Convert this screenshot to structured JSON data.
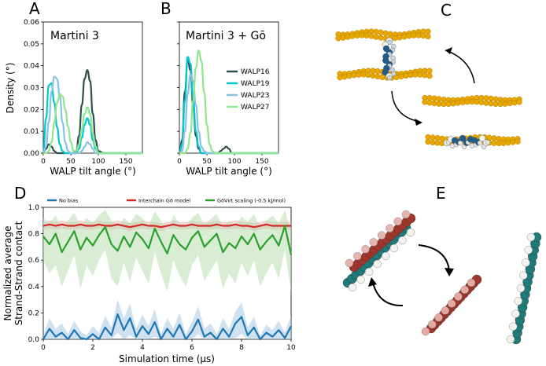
{
  "panels": {
    "A": "A",
    "B": "B",
    "C": "C",
    "D": "D",
    "E": "E"
  },
  "chart_data": [
    {
      "type": "line",
      "panel": "A",
      "title": "Martini 3",
      "xlabel": "WALP tilt angle (°)",
      "ylabel": "Density (°)",
      "xlim": [
        0,
        180
      ],
      "ylim": [
        0,
        0.06
      ],
      "xticks": [
        "0",
        "50",
        "100",
        "150"
      ],
      "yticks": [
        "0.00",
        "0.01",
        "0.02",
        "0.03",
        "0.04",
        "0.05",
        "0.06"
      ],
      "x": [
        0,
        5,
        10,
        15,
        20,
        25,
        30,
        35,
        40,
        45,
        50,
        55,
        60,
        65,
        70,
        75,
        80,
        85,
        90,
        95,
        100,
        110,
        120
      ],
      "series": [
        {
          "name": "WALP16",
          "color": "#2f4f4f",
          "values": [
            0.0,
            0.002,
            0.004,
            0.003,
            0.001,
            0.0,
            0.0,
            0.0,
            0.0,
            0.0,
            0.0,
            0.0,
            0.001,
            0.008,
            0.022,
            0.034,
            0.038,
            0.033,
            0.018,
            0.006,
            0.001,
            0.0,
            0.0
          ]
        },
        {
          "name": "WALP19",
          "color": "#00c8d0",
          "values": [
            0.0,
            0.016,
            0.031,
            0.032,
            0.023,
            0.012,
            0.004,
            0.001,
            0.0,
            0.0,
            0.0,
            0.0,
            0.0,
            0.002,
            0.007,
            0.013,
            0.016,
            0.013,
            0.006,
            0.002,
            0.0,
            0.0,
            0.0
          ]
        },
        {
          "name": "WALP23",
          "color": "#87c3e0",
          "values": [
            0.0,
            0.003,
            0.014,
            0.028,
            0.035,
            0.034,
            0.026,
            0.014,
            0.005,
            0.001,
            0.0,
            0.0,
            0.0,
            0.0,
            0.001,
            0.003,
            0.005,
            0.004,
            0.002,
            0.0,
            0.0,
            0.0,
            0.0
          ]
        },
        {
          "name": "WALP27",
          "color": "#8ee68e",
          "values": [
            0.0,
            0.0,
            0.001,
            0.005,
            0.014,
            0.023,
            0.027,
            0.026,
            0.02,
            0.012,
            0.005,
            0.001,
            0.001,
            0.004,
            0.011,
            0.018,
            0.021,
            0.018,
            0.009,
            0.003,
            0.0,
            0.0,
            0.0
          ]
        }
      ]
    },
    {
      "type": "line",
      "panel": "B",
      "title": "Martini 3 + Gō",
      "xlabel": "WALP tilt angle (°)",
      "xlim": [
        0,
        180
      ],
      "ylim": [
        0,
        0.06
      ],
      "xticks": [
        "0",
        "50",
        "100",
        "150"
      ],
      "legend": "right",
      "x": [
        0,
        5,
        10,
        15,
        20,
        25,
        30,
        35,
        40,
        45,
        50,
        55,
        60,
        65,
        70,
        75,
        80,
        85,
        90,
        95,
        100,
        110,
        120
      ],
      "series": [
        {
          "name": "WALP16",
          "color": "#2f4f4f",
          "values": [
            0.0,
            0.006,
            0.028,
            0.043,
            0.038,
            0.022,
            0.008,
            0.002,
            0.0,
            0.0,
            0.0,
            0.0,
            0.0,
            0.0,
            0.0,
            0.001,
            0.002,
            0.003,
            0.002,
            0.0,
            0.0,
            0.0,
            0.0
          ]
        },
        {
          "name": "WALP19",
          "color": "#00c8d0",
          "values": [
            0.0,
            0.004,
            0.024,
            0.044,
            0.041,
            0.025,
            0.01,
            0.003,
            0.0,
            0.0,
            0.0,
            0.0,
            0.0,
            0.0,
            0.0,
            0.0,
            0.0,
            0.0,
            0.0,
            0.0,
            0.0,
            0.0,
            0.0
          ]
        },
        {
          "name": "WALP23",
          "color": "#87c3e0",
          "values": [
            0.0,
            0.001,
            0.01,
            0.027,
            0.036,
            0.033,
            0.022,
            0.01,
            0.003,
            0.001,
            0.0,
            0.0,
            0.0,
            0.0,
            0.0,
            0.0,
            0.0,
            0.0,
            0.0,
            0.0,
            0.0,
            0.0,
            0.0
          ]
        },
        {
          "name": "WALP27",
          "color": "#8ee68e",
          "values": [
            0.0,
            0.0,
            0.0,
            0.002,
            0.009,
            0.024,
            0.039,
            0.047,
            0.042,
            0.028,
            0.013,
            0.004,
            0.001,
            0.0,
            0.0,
            0.0,
            0.0,
            0.0,
            0.0,
            0.0,
            0.0,
            0.0,
            0.0
          ]
        }
      ]
    },
    {
      "type": "line",
      "panel": "D",
      "xlabel": "Simulation time (µs)",
      "ylabel": "Normalized average\nStrand-Strand contact",
      "ylabel_lines": [
        "Normalized average",
        "Strand-Strand contact"
      ],
      "xlim": [
        0,
        10
      ],
      "ylim": [
        0,
        1.0
      ],
      "xticks": [
        "0",
        "2",
        "4",
        "6",
        "8",
        "10"
      ],
      "yticks": [
        "0.0",
        "0.2",
        "0.4",
        "0.6",
        "0.8",
        "1.0"
      ],
      "legend": "top",
      "x": [
        0,
        0.25,
        0.5,
        0.75,
        1,
        1.25,
        1.5,
        1.75,
        2,
        2.25,
        2.5,
        2.75,
        3,
        3.25,
        3.5,
        3.75,
        4,
        4.25,
        4.5,
        4.75,
        5,
        5.25,
        5.5,
        5.75,
        6,
        6.25,
        6.5,
        6.75,
        7,
        7.25,
        7.5,
        7.75,
        8,
        8.25,
        8.5,
        8.75,
        9,
        9.25,
        9.5,
        9.75,
        10
      ],
      "series": [
        {
          "name": "No bias",
          "color": "#1f77b4",
          "values": [
            0.0,
            0.08,
            0.02,
            0.05,
            0.0,
            0.07,
            0.01,
            0.0,
            0.04,
            0.0,
            0.09,
            0.03,
            0.19,
            0.07,
            0.16,
            0.02,
            0.1,
            0.04,
            0.13,
            0.0,
            0.08,
            0.02,
            0.11,
            0.0,
            0.06,
            0.15,
            0.02,
            0.05,
            0.0,
            0.08,
            0.02,
            0.12,
            0.17,
            0.03,
            0.09,
            0.0,
            0.05,
            0.02,
            0.07,
            0.01,
            0.1
          ],
          "band_low": [
            0.0,
            0.0,
            0.0,
            0.0,
            0.0,
            0.0,
            0.0,
            0.0,
            0.0,
            0.0,
            0.0,
            0.0,
            0.05,
            0.0,
            0.03,
            0.0,
            0.0,
            0.0,
            0.02,
            0.0,
            0.0,
            0.0,
            0.0,
            0.0,
            0.0,
            0.04,
            0.0,
            0.0,
            0.0,
            0.0,
            0.0,
            0.01,
            0.04,
            0.0,
            0.0,
            0.0,
            0.0,
            0.0,
            0.0,
            0.0,
            0.0
          ],
          "band_high": [
            0.03,
            0.16,
            0.08,
            0.12,
            0.04,
            0.14,
            0.06,
            0.03,
            0.1,
            0.05,
            0.18,
            0.09,
            0.3,
            0.16,
            0.27,
            0.08,
            0.19,
            0.1,
            0.23,
            0.04,
            0.16,
            0.08,
            0.2,
            0.04,
            0.13,
            0.25,
            0.08,
            0.12,
            0.04,
            0.16,
            0.08,
            0.21,
            0.28,
            0.09,
            0.17,
            0.03,
            0.11,
            0.07,
            0.14,
            0.05,
            0.18
          ]
        },
        {
          "name": "Interchain Gō model",
          "color": "#d62728",
          "values": [
            0.86,
            0.87,
            0.86,
            0.87,
            0.86,
            0.86,
            0.87,
            0.86,
            0.86,
            0.87,
            0.86,
            0.86,
            0.87,
            0.86,
            0.85,
            0.86,
            0.87,
            0.86,
            0.86,
            0.85,
            0.86,
            0.87,
            0.86,
            0.86,
            0.87,
            0.86,
            0.86,
            0.86,
            0.87,
            0.86,
            0.86,
            0.87,
            0.86,
            0.86,
            0.85,
            0.86,
            0.87,
            0.86,
            0.86,
            0.86,
            0.86
          ],
          "band_low": [
            0.83,
            0.84,
            0.83,
            0.84,
            0.83,
            0.83,
            0.84,
            0.83,
            0.83,
            0.84,
            0.83,
            0.83,
            0.84,
            0.83,
            0.82,
            0.83,
            0.84,
            0.83,
            0.83,
            0.82,
            0.83,
            0.84,
            0.83,
            0.83,
            0.84,
            0.83,
            0.83,
            0.83,
            0.84,
            0.83,
            0.83,
            0.84,
            0.83,
            0.83,
            0.82,
            0.83,
            0.84,
            0.83,
            0.83,
            0.83,
            0.83
          ],
          "band_high": [
            0.89,
            0.9,
            0.89,
            0.9,
            0.89,
            0.89,
            0.9,
            0.89,
            0.89,
            0.9,
            0.89,
            0.89,
            0.9,
            0.89,
            0.88,
            0.89,
            0.9,
            0.89,
            0.89,
            0.88,
            0.89,
            0.9,
            0.89,
            0.89,
            0.9,
            0.89,
            0.89,
            0.89,
            0.9,
            0.89,
            0.89,
            0.9,
            0.89,
            0.89,
            0.88,
            0.89,
            0.9,
            0.89,
            0.89,
            0.89,
            0.89
          ]
        },
        {
          "name": "GōVirt scaling (-0.5 kJ/mol)",
          "color": "#2ca02c",
          "values": [
            0.78,
            0.72,
            0.8,
            0.66,
            0.74,
            0.82,
            0.68,
            0.77,
            0.71,
            0.79,
            0.85,
            0.72,
            0.67,
            0.78,
            0.7,
            0.81,
            0.76,
            0.69,
            0.84,
            0.74,
            0.65,
            0.79,
            0.72,
            0.68,
            0.77,
            0.82,
            0.7,
            0.75,
            0.8,
            0.66,
            0.73,
            0.69,
            0.78,
            0.72,
            0.8,
            0.68,
            0.74,
            0.79,
            0.71,
            0.86,
            0.64
          ],
          "band_low": [
            0.6,
            0.5,
            0.56,
            0.4,
            0.52,
            0.64,
            0.38,
            0.56,
            0.48,
            0.6,
            0.68,
            0.46,
            0.4,
            0.58,
            0.44,
            0.62,
            0.52,
            0.42,
            0.66,
            0.5,
            0.36,
            0.6,
            0.48,
            0.4,
            0.56,
            0.64,
            0.44,
            0.52,
            0.6,
            0.38,
            0.5,
            0.42,
            0.58,
            0.48,
            0.6,
            0.4,
            0.5,
            0.58,
            0.46,
            0.68,
            0.36
          ],
          "band_high": [
            0.92,
            0.88,
            0.94,
            0.84,
            0.9,
            0.96,
            0.86,
            0.92,
            0.88,
            0.94,
            0.98,
            0.9,
            0.84,
            0.92,
            0.88,
            0.95,
            0.92,
            0.86,
            0.97,
            0.9,
            0.82,
            0.94,
            0.88,
            0.85,
            0.92,
            0.96,
            0.87,
            0.91,
            0.95,
            0.84,
            0.9,
            0.86,
            0.93,
            0.89,
            0.95,
            0.85,
            0.9,
            0.94,
            0.88,
            0.98,
            0.82
          ]
        }
      ]
    }
  ],
  "colors": {
    "lipid_head": "#e8a800",
    "peptide_blue": "#1f5d8c",
    "strand_red": "#a0362b",
    "strand_teal": "#1f7a7a",
    "bead_white": "#f2f2ee"
  }
}
